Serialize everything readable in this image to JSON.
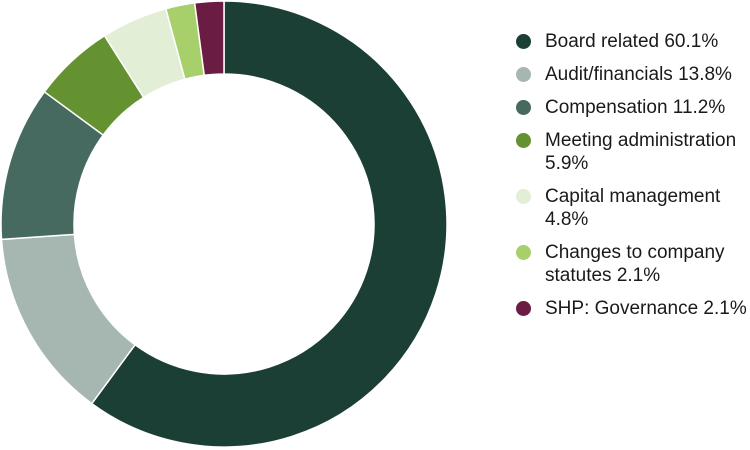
{
  "chart_data": {
    "type": "pie",
    "variant": "donut",
    "title": "",
    "legend_position": "right",
    "categories": [
      "Board related",
      "Audit/financials",
      "Compensation",
      "Meeting administration",
      "Capital management",
      "Changes to company statutes",
      "SHP: Governance"
    ],
    "values": [
      60.1,
      13.8,
      11.2,
      5.9,
      4.8,
      2.1,
      2.1
    ],
    "unit": "%",
    "colors": [
      "#1b3f35",
      "#a6b6b0",
      "#466a5f",
      "#649231",
      "#e2eed6",
      "#a7d06a",
      "#6b1c42"
    ],
    "legend": [
      {
        "label": "Board related 60.1%"
      },
      {
        "label": "Audit/financials 13.8%"
      },
      {
        "label": "Compensation 11.2%"
      },
      {
        "label": "Meeting administration 5.9%"
      },
      {
        "label": "Capital management 4.8%"
      },
      {
        "label": "Changes to company statutes 2.1%"
      },
      {
        "label": "SHP: Governance 2.1%"
      }
    ]
  }
}
